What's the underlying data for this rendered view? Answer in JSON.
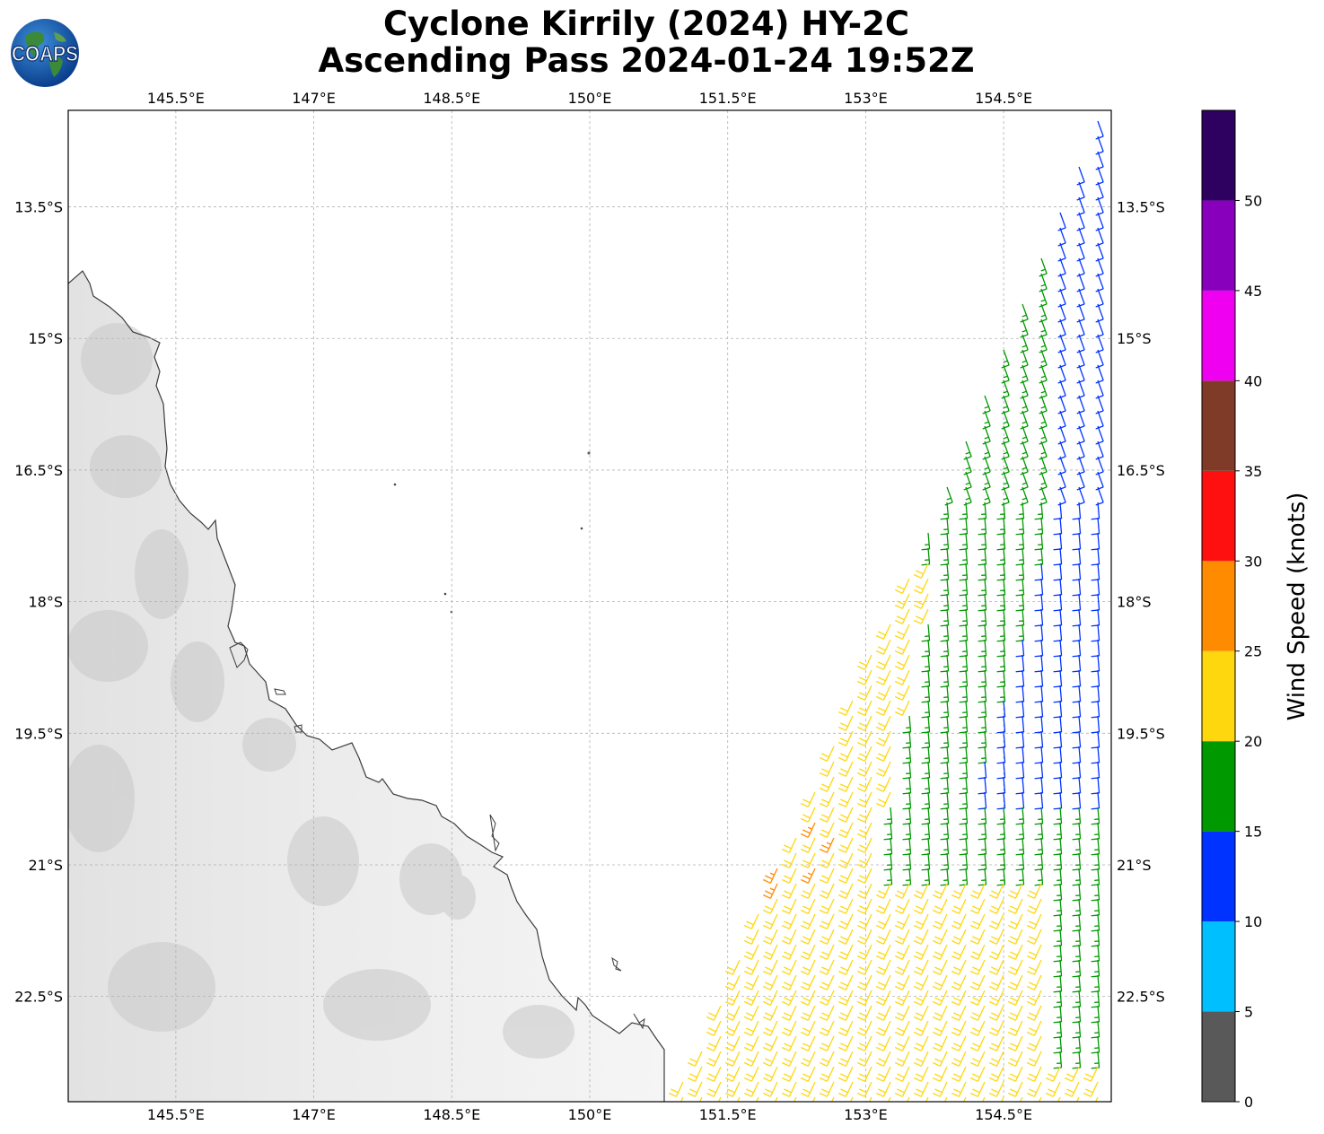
{
  "title": {
    "line1": "Cyclone Kirrily (2024) HY-2C",
    "line2": "Ascending Pass 2024-01-24 19:52Z"
  },
  "logo": {
    "text": "COAPS",
    "icon": "globe-icon"
  },
  "map": {
    "lon_range": [
      144.33,
      155.67
    ],
    "lat_range": [
      -23.7,
      -12.4
    ],
    "lon_ticks": [
      145.5,
      147,
      148.5,
      150,
      151.5,
      153,
      154.5
    ],
    "lon_tick_labels": [
      "145.5°E",
      "147°E",
      "148.5°E",
      "150°E",
      "151.5°E",
      "153°E",
      "154.5°E"
    ],
    "lat_ticks": [
      -13.5,
      -15,
      -16.5,
      -18,
      -19.5,
      -21,
      -22.5
    ],
    "lat_tick_labels": [
      "13.5°S",
      "15°S",
      "16.5°S",
      "18°S",
      "19.5°S",
      "21°S",
      "22.5°S"
    ],
    "gridlines": true,
    "land_shading": "grayscale"
  },
  "colorbar": {
    "label": "Wind Speed (knots)",
    "bounds": [
      0,
      5,
      10,
      15,
      20,
      25,
      30,
      35,
      40,
      45,
      50,
      55
    ],
    "tick_labels": [
      "0",
      "5",
      "10",
      "15",
      "20",
      "25",
      "30",
      "35",
      "40",
      "45",
      "50"
    ],
    "colors": [
      "#595959",
      "#00bfff",
      "#0033ff",
      "#009900",
      "#ffd70e",
      "#ff8c00",
      "#ff1010",
      "#7f3a28",
      "#f000f0",
      "#8800bb",
      "#2e0060"
    ]
  },
  "barbs_note_colors": {
    "10-15": "#0033ff",
    "15-20": "#009900",
    "20-25": "#ffd70e",
    "25-30": "#ff8c00"
  }
}
